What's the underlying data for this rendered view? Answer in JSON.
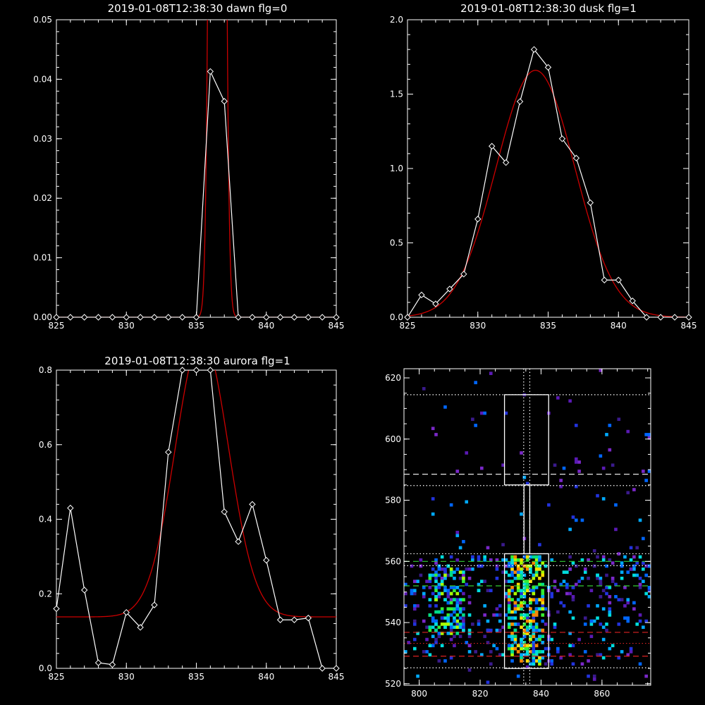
{
  "chart_data": [
    {
      "id": "dawn",
      "type": "line",
      "title": "2019-01-08T12:38:30 dawn flg=0",
      "xlabel": "",
      "ylabel": "",
      "xlim": [
        825,
        845
      ],
      "ylim": [
        0,
        0.05
      ],
      "xticks": [
        "825",
        "830",
        "835",
        "840",
        "845"
      ],
      "yticks": [
        "0.00",
        "0.01",
        "0.02",
        "0.03",
        "0.04",
        "0.05"
      ],
      "series": [
        {
          "role": "data",
          "color": "#ffffff",
          "marker": "diamond",
          "x": [
            825,
            826,
            827,
            828,
            829,
            830,
            831,
            832,
            833,
            834,
            835,
            836,
            837,
            838,
            839,
            840,
            841,
            842,
            843,
            844,
            845
          ],
          "y": [
            0,
            0,
            0,
            0,
            0,
            0,
            0,
            0,
            0,
            0,
            0,
            0.0413,
            0.0363,
            0,
            0,
            0,
            0,
            0,
            0,
            0,
            0
          ]
        },
        {
          "role": "gaussian-fit",
          "color": "#cc0000",
          "fit": {
            "amplitude": 0.5,
            "center": 836.5,
            "sigma": 0.33,
            "offset": 0
          }
        }
      ]
    },
    {
      "id": "dusk",
      "type": "line",
      "title": "2019-01-08T12:38:30 dusk flg=1",
      "xlabel": "",
      "ylabel": "",
      "xlim": [
        825,
        845
      ],
      "ylim": [
        0,
        2.0
      ],
      "xticks": [
        "825",
        "830",
        "835",
        "840",
        "845"
      ],
      "yticks": [
        "0.0",
        "0.5",
        "1.0",
        "1.5",
        "2.0"
      ],
      "series": [
        {
          "role": "data",
          "color": "#ffffff",
          "marker": "diamond",
          "x": [
            825,
            826,
            827,
            828,
            829,
            830,
            831,
            832,
            833,
            834,
            835,
            836,
            837,
            838,
            839,
            840,
            841,
            842,
            843,
            844,
            845
          ],
          "y": [
            0,
            0.15,
            0.09,
            0.19,
            0.29,
            0.66,
            1.15,
            1.04,
            1.45,
            1.8,
            1.68,
            1.2,
            1.07,
            0.77,
            0.25,
            0.25,
            0.11,
            0,
            0,
            0,
            0
          ]
        },
        {
          "role": "gaussian-fit",
          "color": "#cc0000",
          "fit": {
            "amplitude": 1.66,
            "center": 834.1,
            "sigma": 2.8,
            "offset": 0
          }
        }
      ]
    },
    {
      "id": "aurora",
      "type": "line",
      "title": "2019-01-08T12:38:30 aurora flg=1",
      "xlabel": "",
      "ylabel": "",
      "xlim": [
        825,
        845
      ],
      "ylim": [
        0,
        0.8
      ],
      "xticks": [
        "825",
        "830",
        "835",
        "840",
        "845"
      ],
      "yticks": [
        "0.0",
        "0.2",
        "0.4",
        "0.6",
        "0.8"
      ],
      "series": [
        {
          "role": "data",
          "color": "#ffffff",
          "marker": "diamond",
          "x": [
            825,
            826,
            827,
            828,
            829,
            830,
            831,
            832,
            833,
            834,
            835,
            836,
            837,
            838,
            839,
            840,
            841,
            842,
            843,
            844,
            845
          ],
          "y": [
            0.16,
            0.43,
            0.21,
            0.015,
            0.01,
            0.15,
            0.11,
            0.17,
            0.58,
            0.8,
            0.8,
            0.8,
            0.42,
            0.34,
            0.44,
            0.29,
            0.13,
            0.13,
            0.135,
            0,
            0
          ]
        },
        {
          "role": "gaussian-fit",
          "color": "#cc0000",
          "fit": {
            "amplitude": 0.75,
            "center": 835.4,
            "sigma": 1.9,
            "offset": 0.138
          }
        }
      ]
    },
    {
      "id": "image",
      "type": "heatmap",
      "title": "",
      "xlabel": "",
      "ylabel": "",
      "xlim": [
        795,
        876
      ],
      "ylim": [
        519.5,
        623
      ],
      "xticks": [
        "800",
        "820",
        "840",
        "860"
      ],
      "yticks": [
        "520",
        "540",
        "560",
        "580",
        "600",
        "620"
      ],
      "colors": [
        "#3a1a8c",
        "#5a1ab4",
        "#7a28c8",
        "#2233dd",
        "#0066ff",
        "#00aaff",
        "#00dddd",
        "#00dd88",
        "#33ee33",
        "#aaff00",
        "#ffdd00",
        "#ff8800"
      ],
      "boxes": [
        {
          "x0": 828,
          "x1": 842.5,
          "y0": 585,
          "y1": 614.5,
          "color": "#ffffff"
        },
        {
          "x0": 828,
          "x1": 842.5,
          "y0": 525,
          "y1": 562.5,
          "color": "#ffffff"
        }
      ],
      "connector": {
        "x0": 834.4,
        "x1": 836.3,
        "y0": 562.5,
        "y1": 585,
        "color": "#ffffff"
      },
      "vlines": [
        {
          "x": 834.3,
          "style": "dotted",
          "color": "#ffffff"
        },
        {
          "x": 836.3,
          "style": "dotted",
          "color": "#ffffff"
        }
      ],
      "hlines": [
        {
          "y": 614.5,
          "style": "dotted",
          "color": "#ffffff"
        },
        {
          "y": 588.5,
          "style": "dashed",
          "color": "#ffffff"
        },
        {
          "y": 584.8,
          "style": "dotted",
          "color": "#ffffff"
        },
        {
          "y": 562.5,
          "style": "dotted",
          "color": "#ffffff"
        },
        {
          "y": 560.0,
          "style": "dashed",
          "color": "#33cc33"
        },
        {
          "y": 558.6,
          "style": "dotted",
          "color": "#ffffff"
        },
        {
          "y": 552.0,
          "style": "dashed",
          "color": "#33cc33"
        },
        {
          "y": 536.8,
          "style": "dashed",
          "color": "#dd2222"
        },
        {
          "y": 533.2,
          "style": "dotted",
          "color": "#dd2222"
        },
        {
          "y": 529.0,
          "style": "dashed",
          "color": "#dd2222"
        },
        {
          "y": 525.2,
          "style": "dotted",
          "color": "#ffffff"
        }
      ]
    }
  ]
}
